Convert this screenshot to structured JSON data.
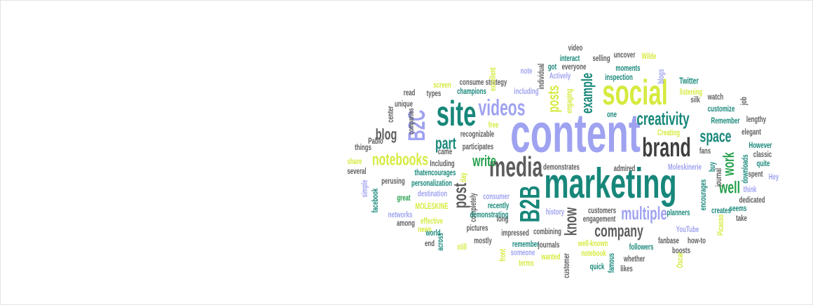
{
  "words": [
    "content",
    "marketing",
    "social",
    "site",
    "videos",
    "media",
    "brand",
    "B2C",
    "B2B",
    "creativity",
    "example",
    "posts",
    "space",
    "multiple",
    "company",
    "know",
    "well",
    "work",
    "notebooks",
    "part",
    "write",
    "post",
    "blog",
    "video",
    "selling",
    "uncover",
    "Wilde",
    "interact",
    "got",
    "everyone",
    "moments",
    "strategy",
    "individual",
    "note",
    "Actively",
    "inspection",
    "blogs",
    "consume",
    "excellent",
    "screen",
    "types",
    "champions",
    "including",
    "engaging",
    "Twitter",
    "silk",
    "listening",
    "watch",
    "job",
    "read",
    "unique",
    "center",
    "companies",
    "Pablo",
    "customize",
    "Remember",
    "lengthy",
    "recognizable",
    "participates",
    "free",
    "one",
    "Creating",
    "elegant",
    "things",
    "came",
    "Including",
    "thatencourages",
    "personalization",
    "share",
    "several",
    "However",
    "classic",
    "fans",
    "quite",
    "downloads",
    "buy",
    "Moleskinerie",
    "demonstrates",
    "admired",
    "journal",
    "spent",
    "simple",
    "facebook",
    "perusing",
    "great",
    "destination",
    "day",
    "consumer",
    "completely",
    "MOLESKINE",
    "recently",
    "dedicated",
    "think",
    "Hey",
    "encourages",
    "networks",
    "among",
    "effective",
    "news",
    "demonstrating",
    "long",
    "history",
    "customers",
    "engagement",
    "planners",
    "creates",
    "seems",
    "take",
    "Picasso",
    "world",
    "across",
    "end",
    "still",
    "pictures",
    "impressed",
    "combining",
    "mostly",
    "remember",
    "journals",
    "well-known",
    "YouTube",
    "fanbase",
    "how-to",
    "front",
    "someone",
    "notebook",
    "followers",
    "boosts",
    "wanted",
    "Oscar",
    "whether",
    "customer",
    "famous",
    "terms",
    "quick",
    "likes"
  ]
}
